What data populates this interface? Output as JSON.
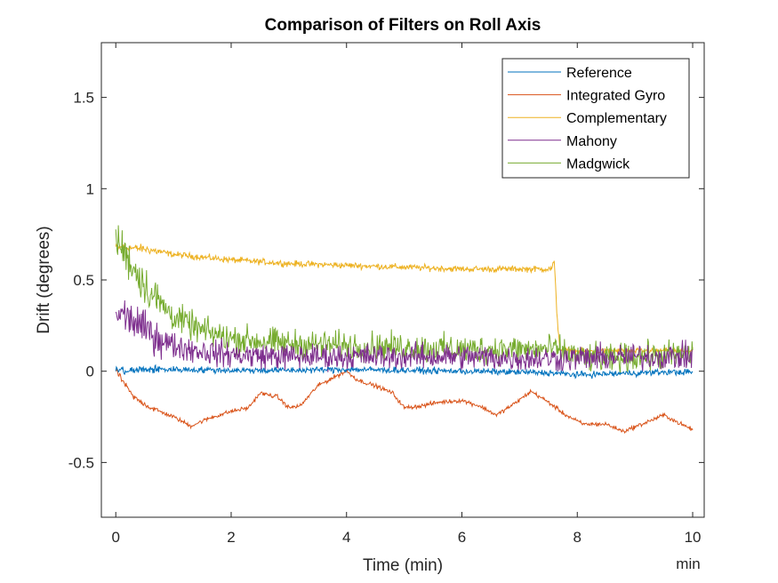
{
  "chart_data": {
    "type": "line",
    "title": "Comparison of Filters on Roll Axis",
    "xlabel": "Time (min)",
    "ylabel": "Drift (degrees)",
    "x_unit_label": "min",
    "xlim": [
      -0.25,
      10.2
    ],
    "ylim": [
      -0.8,
      1.8
    ],
    "x_ticks": [
      0,
      2,
      4,
      6,
      8,
      10
    ],
    "x_tick_labels": [
      "0",
      "2",
      "4",
      "6",
      "8",
      "10"
    ],
    "y_ticks": [
      -0.5,
      0,
      0.5,
      1,
      1.5
    ],
    "y_tick_labels": [
      "-0.5",
      "0",
      "0.5",
      "1",
      "1.5"
    ],
    "grid": false,
    "legend_position": "top-right",
    "series": [
      {
        "name": "Reference",
        "color": "#0072BD",
        "noise": 0.012,
        "x": [
          0,
          0.2,
          0.5,
          1,
          2,
          3,
          4,
          5,
          6,
          7,
          7.6,
          8,
          8.5,
          9,
          9.5,
          10
        ],
        "y": [
          0.01,
          0.0,
          0.01,
          0.01,
          0.005,
          0.005,
          0.01,
          0.005,
          0.0,
          -0.005,
          -0.01,
          -0.02,
          -0.015,
          -0.01,
          -0.005,
          -0.005
        ]
      },
      {
        "name": "Integrated Gyro",
        "color": "#D95319",
        "noise": 0.008,
        "x": [
          0,
          0.05,
          0.3,
          0.6,
          1,
          1.3,
          1.6,
          2,
          2.3,
          2.5,
          2.8,
          3,
          3.2,
          3.5,
          3.8,
          4,
          4.2,
          4.5,
          4.8,
          5,
          5.3,
          5.6,
          6,
          6.3,
          6.6,
          6.9,
          7.2,
          7.5,
          7.8,
          8.1,
          8.5,
          8.8,
          9.2,
          9.5,
          9.8,
          10
        ],
        "y": [
          0.01,
          -0.02,
          -0.14,
          -0.2,
          -0.25,
          -0.3,
          -0.26,
          -0.22,
          -0.2,
          -0.12,
          -0.14,
          -0.2,
          -0.19,
          -0.08,
          -0.03,
          0.0,
          -0.05,
          -0.08,
          -0.12,
          -0.2,
          -0.19,
          -0.17,
          -0.16,
          -0.19,
          -0.24,
          -0.18,
          -0.11,
          -0.17,
          -0.24,
          -0.29,
          -0.29,
          -0.33,
          -0.28,
          -0.24,
          -0.29,
          -0.32
        ]
      },
      {
        "name": "Complementary",
        "color": "#EDB120",
        "noise": 0.012,
        "x": [
          0,
          0.5,
          1,
          2,
          3,
          4,
          5,
          6,
          7,
          7.55,
          7.6,
          7.65,
          7.7,
          8,
          9,
          10
        ],
        "y": [
          0.68,
          0.67,
          0.64,
          0.61,
          0.59,
          0.58,
          0.57,
          0.56,
          0.56,
          0.56,
          0.6,
          0.3,
          0.12,
          0.11,
          0.11,
          0.11
        ]
      },
      {
        "name": "Mahony",
        "color": "#7E2F8E",
        "noise": 0.05,
        "x": [
          0,
          0.2,
          0.4,
          0.7,
          1,
          1.5,
          2,
          3,
          4,
          5,
          6,
          7,
          8,
          9,
          10
        ],
        "y": [
          0.32,
          0.3,
          0.25,
          0.19,
          0.14,
          0.11,
          0.09,
          0.08,
          0.08,
          0.08,
          0.08,
          0.07,
          0.07,
          0.08,
          0.08
        ]
      },
      {
        "name": "Madgwick",
        "color": "#77AC30",
        "noise": 0.055,
        "x": [
          0,
          0.1,
          0.3,
          0.6,
          1,
          1.5,
          2,
          3,
          4,
          5,
          6,
          7,
          7.6,
          8,
          8.5,
          9,
          10
        ],
        "y": [
          0.72,
          0.68,
          0.57,
          0.43,
          0.3,
          0.22,
          0.18,
          0.15,
          0.14,
          0.13,
          0.12,
          0.12,
          0.12,
          0.08,
          0.06,
          0.08,
          0.09
        ]
      }
    ]
  }
}
